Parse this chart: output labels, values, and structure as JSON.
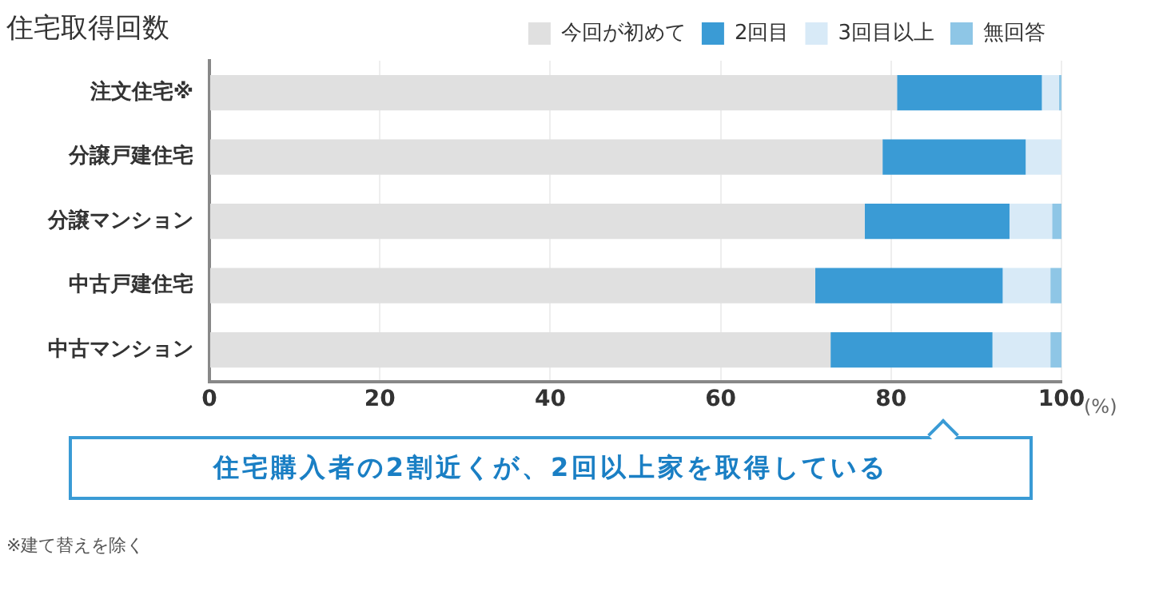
{
  "chart_data": {
    "type": "bar",
    "title": "住宅取得回数",
    "orientation": "horizontal",
    "stacked": true,
    "categories": [
      "注文住宅※",
      "分譲戸建住宅",
      "分譲マンション",
      "中古戸建住宅",
      "中古マンション"
    ],
    "series": [
      {
        "name": "今回が初めて",
        "color": "#e0e0e0",
        "values": [
          80.7,
          79.0,
          76.9,
          71.1,
          72.9
        ]
      },
      {
        "name": "2回目",
        "color": "#3a9bd5",
        "values": [
          17.0,
          16.8,
          17.0,
          22.0,
          19.0
        ]
      },
      {
        "name": "3回目以上",
        "color": "#d8eaf7",
        "values": [
          2.0,
          4.2,
          5.0,
          5.6,
          6.8
        ]
      },
      {
        "name": "無回答",
        "color": "#8ec6e6",
        "values": [
          0.3,
          0,
          1.1,
          1.3,
          1.3
        ]
      }
    ],
    "xlim": [
      0,
      100
    ],
    "xticks": [
      0,
      20,
      40,
      60,
      80,
      100
    ],
    "xlabel": "(%)",
    "grid": "x",
    "legend": "top right",
    "annotations": [
      "住宅購入者の2割近くが、2回以上家を取得している",
      "※建て替えを除く"
    ]
  }
}
